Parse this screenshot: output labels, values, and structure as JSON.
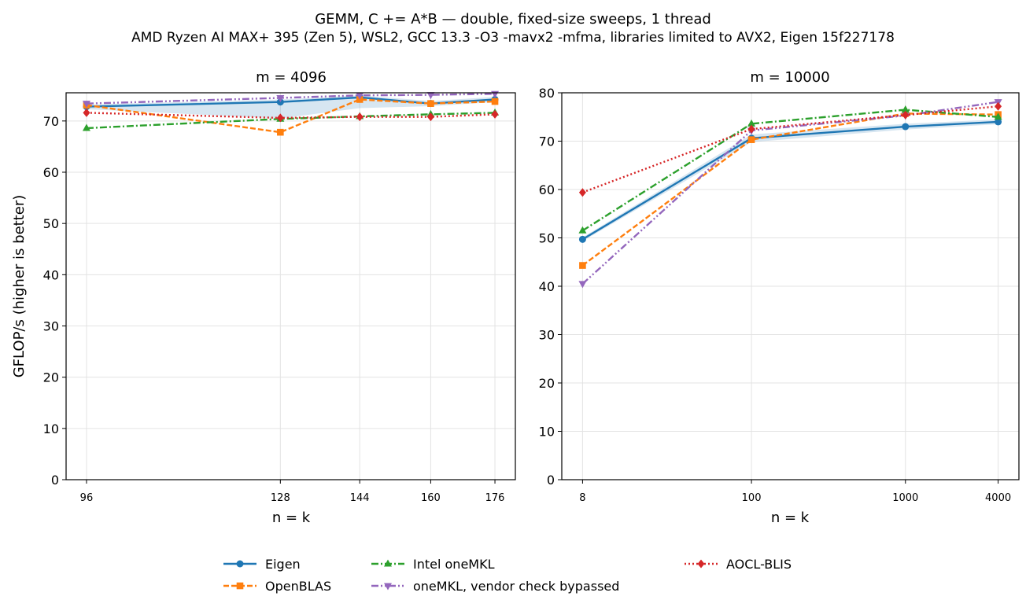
{
  "figure": {
    "title": "GEMM, C += A*B — double, fixed-size sweeps, 1 thread",
    "subtitle": "AMD Ryzen AI MAX+ 395 (Zen 5), WSL2, GCC 13.3 -O3 -mavx2 -mfma, libraries limited to AVX2, Eigen 15f227178"
  },
  "legend": {
    "placement": "bottom-center",
    "entries": [
      {
        "name": "Eigen",
        "color": "#1f77b4",
        "dash": "solid",
        "marker": "circle"
      },
      {
        "name": "OpenBLAS",
        "color": "#ff7f0e",
        "dash": "dashed",
        "marker": "square"
      },
      {
        "name": "Intel oneMKL",
        "color": "#2ca02c",
        "dash": "dashdot",
        "marker": "triangle-up"
      },
      {
        "name": "oneMKL, vendor check bypassed",
        "color": "#9467bd",
        "dash": "dashdotdot",
        "marker": "triangle-down"
      },
      {
        "name": "AOCL-BLIS",
        "color": "#d62728",
        "dash": "dotted",
        "marker": "diamond"
      }
    ]
  },
  "chart_data": [
    {
      "type": "line",
      "title": "m = 4096",
      "xlabel": "n = k",
      "ylabel": "GFLOP/s (higher is better)",
      "x": [
        96,
        128,
        144,
        160,
        176
      ],
      "xscale": "log",
      "xticks": [
        "96",
        "128",
        "144",
        "160",
        "176"
      ],
      "ylim": [
        0,
        75.5
      ],
      "yticks": [
        "0",
        "10",
        "20",
        "30",
        "40",
        "50",
        "60",
        "70"
      ],
      "grid": true,
      "series": [
        {
          "name": "Eigen",
          "values": [
            72.8,
            73.7,
            74.6,
            73.4,
            74.2
          ],
          "band_low": [
            72.3,
            70.5,
            72.5,
            72.9,
            73.7
          ],
          "band_high": [
            73.2,
            74.2,
            75.0,
            73.9,
            74.7
          ]
        },
        {
          "name": "OpenBLAS",
          "values": [
            73.1,
            67.8,
            74.2,
            73.4,
            73.8
          ]
        },
        {
          "name": "Intel oneMKL",
          "values": [
            68.6,
            70.4,
            70.9,
            71.3,
            71.6
          ]
        },
        {
          "name": "oneMKL, vendor check bypassed",
          "values": [
            73.4,
            74.5,
            75.0,
            75.1,
            75.3
          ]
        },
        {
          "name": "AOCL-BLIS",
          "values": [
            71.6,
            70.6,
            70.8,
            70.8,
            71.3
          ]
        }
      ]
    },
    {
      "type": "line",
      "title": "m = 10000",
      "xlabel": "n = k",
      "ylabel": "",
      "x": [
        8,
        100,
        1000,
        4000
      ],
      "xscale": "log",
      "xticks": [
        "8",
        "100",
        "1000",
        "4000"
      ],
      "ylim": [
        0,
        80
      ],
      "yticks": [
        "0",
        "10",
        "20",
        "30",
        "40",
        "50",
        "60",
        "70",
        "80"
      ],
      "grid": true,
      "series": [
        {
          "name": "Eigen",
          "values": [
            49.7,
            70.6,
            73.0,
            74.0
          ],
          "band_low": [
            49.3,
            69.8,
            72.4,
            73.5
          ],
          "band_high": [
            50.1,
            71.4,
            73.6,
            74.5
          ]
        },
        {
          "name": "OpenBLAS",
          "values": [
            44.3,
            70.3,
            75.7,
            75.5
          ]
        },
        {
          "name": "Intel oneMKL",
          "values": [
            51.5,
            73.6,
            76.5,
            75.0
          ]
        },
        {
          "name": "oneMKL, vendor check bypassed",
          "values": [
            40.5,
            72.2,
            75.3,
            78.1
          ]
        },
        {
          "name": "AOCL-BLIS",
          "values": [
            59.4,
            72.5,
            75.4,
            77.2
          ]
        }
      ]
    }
  ]
}
